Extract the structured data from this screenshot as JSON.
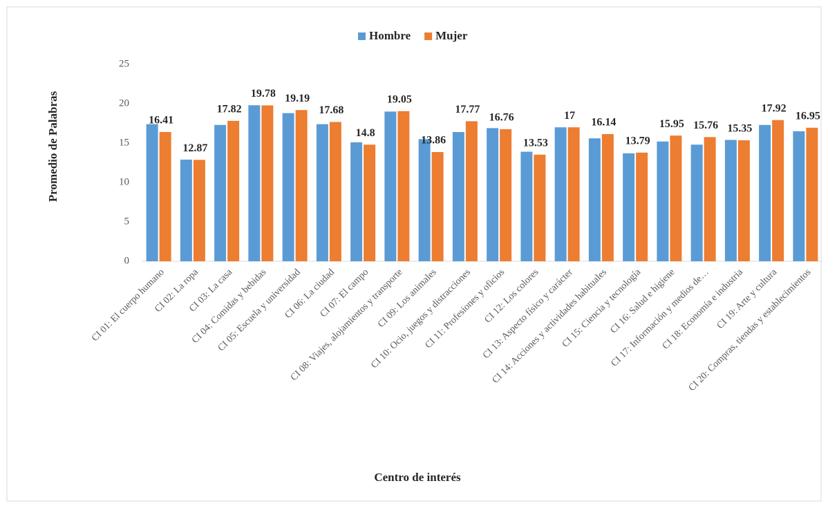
{
  "chart_data": {
    "type": "bar",
    "y_label": "Promedio de Palabras",
    "x_label": "Centro de interés",
    "categories": [
      "CI 01: El cuerpo humano",
      "CI 02: La ropa",
      "CI 03: La casa",
      "CI 04: Comidas y bebidas",
      "CI 05: Escuela y universidad",
      "CI 06: La ciudad",
      "CI 07: El campo",
      "CI 08: Viajes, alojamientos y transporte",
      "CI 09: Los animales",
      "CI 10: Ocio, juegos y distracciones",
      "CI 11: Profesiones y oficios",
      "CI 12: Los colores",
      "CI 13: Aspecto físico y carácter",
      "CI 14: Acciones y actividades habituales",
      "CI 15: Ciencia y tecnología",
      "CI 16: Salud e higiene",
      "CI 17: Información y medios de…",
      "CI 18: Economía e industria",
      "CI 19: Arte y cultura",
      "CI 20: Compras, tiendas y establecimientos"
    ],
    "series": [
      {
        "name": "Hombre",
        "color": "#5b9bd5",
        "values": [
          17.4,
          12.9,
          17.3,
          19.8,
          18.8,
          17.4,
          15.1,
          19.0,
          15.5,
          16.4,
          16.9,
          13.9,
          17.0,
          15.6,
          13.7,
          15.2,
          14.8,
          15.4,
          17.3,
          16.5
        ]
      },
      {
        "name": "Mujer",
        "color": "#ed7d31",
        "values": [
          16.41,
          12.87,
          17.82,
          19.78,
          19.19,
          17.68,
          14.8,
          19.05,
          13.86,
          17.77,
          16.76,
          13.53,
          17,
          16.14,
          13.79,
          15.95,
          15.76,
          15.35,
          17.92,
          16.95
        ]
      }
    ],
    "labeled_series": [
      "Mujer"
    ],
    "ylim": [
      0,
      25
    ],
    "yticks": [
      0,
      5,
      10,
      15,
      20,
      25
    ],
    "grid": false,
    "legend": "top"
  }
}
